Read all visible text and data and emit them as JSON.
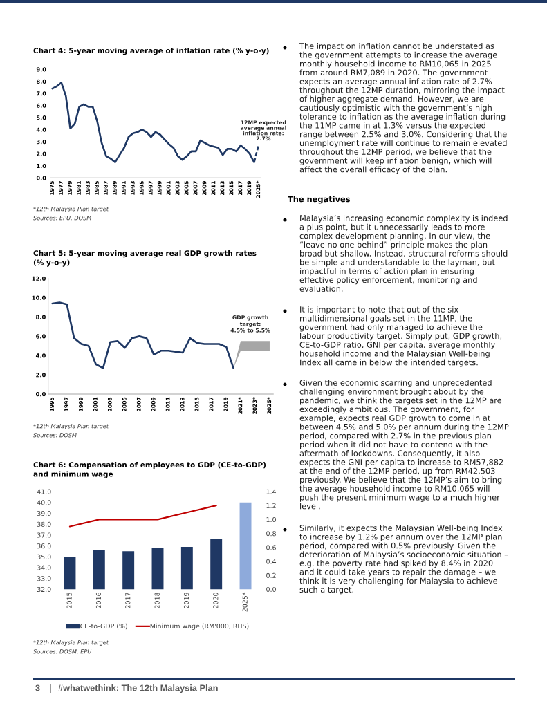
{
  "chart_data": [
    {
      "type": "line",
      "title": "Chart 4: 5-year moving average of inflation rate (% y-o-y)",
      "categories": [
        "1975",
        null,
        "1977",
        null,
        "1979",
        null,
        "1981",
        null,
        "1983",
        null,
        "1985",
        null,
        "1987",
        null,
        "1989",
        null,
        "1991",
        null,
        "1993",
        null,
        "1995",
        null,
        "1997",
        null,
        "1999",
        null,
        "2001",
        null,
        "2003",
        null,
        "2005",
        null,
        "2007",
        null,
        "2009",
        null,
        "2011",
        null,
        "2013",
        null,
        "2015",
        null,
        "2017",
        null,
        "2019",
        null,
        "2025*"
      ],
      "series": [
        {
          "color": "#1f3864",
          "values": [
            7.4,
            7.6,
            7.9,
            6.8,
            4.1,
            4.5,
            5.9,
            6.1,
            5.9,
            5.9,
            4.7,
            2.9,
            1.8,
            1.6,
            1.3,
            1.9,
            2.5,
            3.4,
            3.7,
            3.8,
            4.0,
            3.8,
            3.4,
            3.8,
            3.6,
            3.2,
            2.8,
            2.5,
            1.8,
            1.5,
            1.8,
            2.2,
            2.2,
            3.1,
            2.9,
            2.7,
            2.6,
            2.5,
            1.9,
            2.4,
            2.4,
            2.2,
            2.7,
            2.4,
            2.0,
            1.3,
            null
          ]
        },
        {
          "color": "#1f3864",
          "line_style": "dashed",
          "values": [
            null,
            null,
            null,
            null,
            null,
            null,
            null,
            null,
            null,
            null,
            null,
            null,
            null,
            null,
            null,
            null,
            null,
            null,
            null,
            null,
            null,
            null,
            null,
            null,
            null,
            null,
            null,
            null,
            null,
            null,
            null,
            null,
            null,
            null,
            null,
            null,
            null,
            null,
            null,
            null,
            null,
            null,
            null,
            null,
            null,
            1.3,
            2.7
          ]
        }
      ],
      "ylim": [
        0,
        9
      ],
      "yticks": [
        {
          "value": 0,
          "label": "0.0"
        },
        {
          "value": 1,
          "label": "1.0"
        },
        {
          "value": 2,
          "label": "2.0"
        },
        {
          "value": 3,
          "label": "3.0"
        },
        {
          "value": 4,
          "label": "4.0"
        },
        {
          "value": 5,
          "label": "5.0"
        },
        {
          "value": 6,
          "label": "6.0"
        },
        {
          "value": 7,
          "label": "7.0"
        },
        {
          "value": 8,
          "label": "8.0"
        },
        {
          "value": 9,
          "label": "9.0"
        }
      ],
      "annotations": [
        {
          "text": "12MP expected\naverage annual\ninflation rate:\n2.7%",
          "x": "2025*",
          "y": 2.7
        },
        "*12th Malaysia Plan target",
        "Sources: EPU, DOSM"
      ]
    },
    {
      "type": "line",
      "title": "Chart 5: 5-year moving average real GDP growth rates (% y-o-y)",
      "categories": [
        "1995",
        null,
        "1997",
        null,
        "1999",
        null,
        "2001",
        null,
        "2003",
        null,
        "2005",
        null,
        "2007",
        null,
        "2009",
        null,
        "2011",
        null,
        "2013",
        null,
        "2015",
        null,
        "2017",
        null,
        "2019",
        null,
        "2021*",
        null,
        "2023*",
        null,
        "2025*"
      ],
      "series": [
        {
          "color": "#1f3864",
          "values": [
            9.4,
            9.5,
            9.3,
            5.8,
            5.2,
            5.0,
            3.1,
            2.7,
            5.4,
            5.5,
            4.8,
            5.8,
            6.0,
            5.8,
            4.1,
            4.5,
            4.5,
            4.4,
            4.3,
            5.8,
            5.3,
            5.2,
            5.2,
            5.2,
            4.9,
            2.7,
            null,
            null,
            null,
            null,
            null
          ],
          "lower": [
            null,
            null,
            null,
            null,
            null,
            null,
            null,
            null,
            null,
            null,
            null,
            null,
            null,
            null,
            null,
            null,
            null,
            null,
            null,
            null,
            null,
            null,
            null,
            null,
            null,
            2.7,
            4.5,
            4.5,
            4.5,
            4.5,
            4.5
          ],
          "upper": [
            null,
            null,
            null,
            null,
            null,
            null,
            null,
            null,
            null,
            null,
            null,
            null,
            null,
            null,
            null,
            null,
            null,
            null,
            null,
            null,
            null,
            null,
            null,
            null,
            null,
            2.7,
            5.5,
            5.5,
            5.5,
            5.5,
            5.5
          ]
        }
      ],
      "ylim": [
        0,
        12
      ],
      "yticks": [
        {
          "value": 0,
          "label": "0.0"
        },
        {
          "value": 2,
          "label": "2.0"
        },
        {
          "value": 4,
          "label": "4.0"
        },
        {
          "value": 6,
          "label": "6.0"
        },
        {
          "value": 8,
          "label": "8.0"
        },
        {
          "value": 10,
          "label": "10.0"
        },
        {
          "value": 12,
          "label": "12.0"
        }
      ],
      "annotations": [
        {
          "text": "GDP growth\ntarget:\n4.5% to 5.5%",
          "x": "2023*",
          "y": 5.5
        },
        "*12th Malaysia Plan target",
        "Sources: DOSM"
      ]
    },
    {
      "type": "bar",
      "title": "Chart 6: Compensation of employees to GDP (CE-to-GDP) and minimum wage",
      "categories": [
        "2015",
        "2016",
        "2017",
        "2018",
        "2019",
        "2020",
        "2025*"
      ],
      "series": [
        {
          "name": "CE-to-GDP (%)",
          "color": "#1f3864",
          "colors": [
            "#1f3864",
            "#1f3864",
            "#1f3864",
            "#1f3864",
            "#1f3864",
            "#1f3864",
            "#8eaadb"
          ],
          "values": [
            35.0,
            35.6,
            35.5,
            35.8,
            35.9,
            36.6,
            40.0
          ]
        },
        {
          "name": "Minimum wage (RM'000, RHS)",
          "type": "line",
          "axis": "y2",
          "color": "#c00000",
          "values": [
            0.9,
            1.0,
            1.0,
            1.0,
            1.1,
            1.2,
            null
          ]
        }
      ],
      "ylim": [
        32,
        41
      ],
      "yticks": [
        {
          "value": 32,
          "label": "32.0"
        },
        {
          "value": 33,
          "label": "33.0"
        },
        {
          "value": 34,
          "label": "34.0"
        },
        {
          "value": 35,
          "label": "35.0"
        },
        {
          "value": 36,
          "label": "36.0"
        },
        {
          "value": 37,
          "label": "37.0"
        },
        {
          "value": 38,
          "label": "38.0"
        },
        {
          "value": 39,
          "label": "39.0"
        },
        {
          "value": 40,
          "label": "40.0"
        },
        {
          "value": 41,
          "label": "41.0"
        }
      ],
      "y2lim": [
        0,
        1.4
      ],
      "y2ticks": [
        {
          "value": 0,
          "label": "0.0"
        },
        {
          "value": 0.2,
          "label": "0.2"
        },
        {
          "value": 0.4,
          "label": "0.4"
        },
        {
          "value": 0.6,
          "label": "0.6"
        },
        {
          "value": 0.8,
          "label": "0.8"
        },
        {
          "value": 1.0,
          "label": "1.0"
        },
        {
          "value": 1.2,
          "label": "1.2"
        },
        {
          "value": 1.4,
          "label": "1.4"
        }
      ],
      "legend": "bottom",
      "annotations": [
        "*12th Malaysia Plan target",
        "Sources: DOSM, EPU"
      ]
    },
    {
      "type": "other",
      "annotations": [
        "The impact on inflation cannot be understated as the government attempts to increase the average monthly household income to RM10,065 in 2025 from around RM7,089 in 2020. The government expects an average annual inflation rate of 2.7% throughout the 12MP duration, mirroring the impact of higher aggregate demand. However, we are cautiously optimistic with the government’s high tolerance to inflation as the average inflation during the 11MP came in at 1.3% versus the expected range between 2.5% and 3.0%. Considering that the unemployment rate will continue to remain elevated throughout the 12MP period, we believe that the government will keep inflation benign, which will affect the overall efficacy of the plan."
      ]
    },
    {
      "type": "other",
      "title": "The negatives",
      "annotations": [
        "Malaysia’s increasing economic complexity is indeed a plus point, but it unnecessarily leads to more complex development planning. In our view, the “leave no one behind” principle makes the plan broad but shallow. Instead, structural reforms should be simple and understandable to the layman, but impactful in terms of action plan in ensuring effective policy enforcement, monitoring and evaluation.",
        "It is important to note that out of the six multidimensional goals set in the 11MP, the government had only managed to achieve the labour productivity target. Simply put, GDP growth, CE-to-GDP ratio, GNI per capita, average monthly household income and the Malaysian Well-being Index all came in below the intended targets.",
        "Given the economic scarring and unprecedented challenging environment brought about by the pandemic, we think the targets set in the 12MP are exceedingly ambitious. The government, for example, expects real GDP growth to come in at between 4.5% and 5.0% per annum during the 12MP period, compared with 2.7% in the previous plan period when it did not have to contend with the aftermath of lockdowns. Consequently, it also expects the GNI per capita to increase to RM57,882 at the end of the 12MP period, up from RM42,503 previously. We believe that the 12MP’s aim to bring the average household income to RM10,065 will push the present minimum wage to a much higher level.",
        "Similarly, it expects the Malaysian Well-being Index to increase by 1.2% per annum over the 12MP plan period, compared with 0.5% previously. Given the deterioration of Malaysia’s socioeconomic situation – e.g. the poverty rate had spiked by 8.4% in 2020 and it could take years to repair the damage – we think it is very challenging for Malaysia to achieve such a target."
      ]
    },
    {
      "type": "other",
      "annotations": [
        "3",
        "|",
        "#whatwethink: The 12th Malaysia Plan"
      ]
    }
  ]
}
